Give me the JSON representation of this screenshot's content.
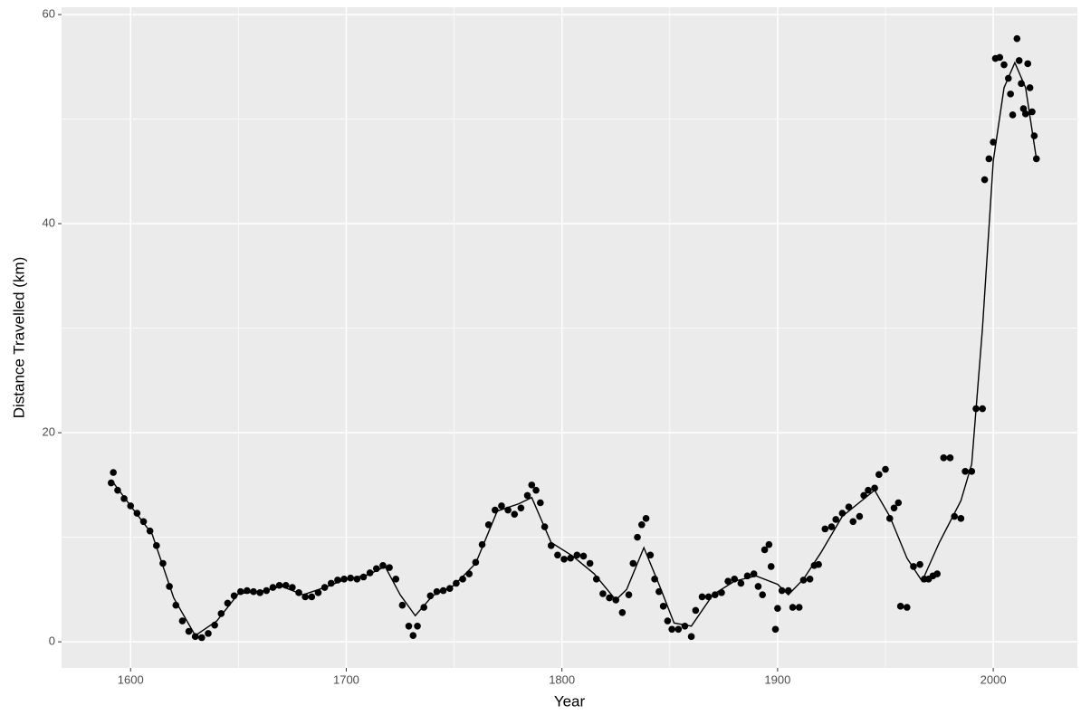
{
  "chart_data": {
    "type": "scatter",
    "x_label": "Year",
    "y_label": "Distance Travelled (km)",
    "xlim": [
      1568,
      2039
    ],
    "ylim": [
      -2.5,
      60.7
    ],
    "xticks": [
      1600,
      1700,
      1800,
      1900,
      2000
    ],
    "yticks": [
      0,
      20,
      40,
      60
    ],
    "x_minor_breaks": [
      1650,
      1750,
      1850,
      1950
    ],
    "y_minor_breaks": [
      10,
      30,
      50
    ],
    "grid": true,
    "point_color": "#000000",
    "line_color": "#000000",
    "x": [
      1591,
      1592,
      1594,
      1597,
      1600,
      1603,
      1606,
      1609,
      1612,
      1615,
      1618,
      1621,
      1624,
      1627,
      1630,
      1633,
      1636,
      1639,
      1642,
      1645,
      1648,
      1651,
      1654,
      1657,
      1660,
      1663,
      1666,
      1669,
      1672,
      1675,
      1678,
      1681,
      1684,
      1687,
      1690,
      1693,
      1696,
      1699,
      1702,
      1705,
      1708,
      1711,
      1714,
      1717,
      1720,
      1723,
      1726,
      1729,
      1731,
      1733,
      1736,
      1739,
      1742,
      1745,
      1748,
      1751,
      1754,
      1757,
      1760,
      1763,
      1766,
      1769,
      1772,
      1775,
      1778,
      1781,
      1784,
      1786,
      1788,
      1790,
      1792,
      1795,
      1798,
      1801,
      1804,
      1807,
      1810,
      1813,
      1816,
      1819,
      1822,
      1825,
      1828,
      1831,
      1833,
      1835,
      1837,
      1839,
      1841,
      1843,
      1845,
      1847,
      1849,
      1851,
      1854,
      1857,
      1860,
      1862,
      1865,
      1868,
      1871,
      1874,
      1877,
      1880,
      1883,
      1886,
      1889,
      1891,
      1893,
      1894,
      1896,
      1897,
      1899,
      1900,
      1902,
      1905,
      1907,
      1910,
      1912,
      1915,
      1917,
      1919,
      1922,
      1925,
      1927,
      1930,
      1933,
      1935,
      1938,
      1940,
      1942,
      1945,
      1947,
      1950,
      1952,
      1954,
      1956,
      1957,
      1960,
      1963,
      1966,
      1968,
      1970,
      1972,
      1974,
      1977,
      1980,
      1982,
      1985,
      1987,
      1990,
      1992,
      1995,
      1996,
      1998,
      2000,
      2001,
      2003,
      2005,
      2007,
      2008,
      2009,
      2011,
      2012,
      2013,
      2014,
      2015,
      2016,
      2017,
      2018,
      2019,
      2020
    ],
    "values": [
      15.2,
      16.2,
      14.5,
      13.7,
      13.0,
      12.3,
      11.5,
      10.6,
      9.2,
      7.5,
      5.3,
      3.5,
      2.0,
      1.0,
      0.5,
      0.4,
      0.8,
      1.6,
      2.7,
      3.7,
      4.4,
      4.8,
      4.9,
      4.8,
      4.7,
      4.9,
      5.2,
      5.4,
      5.4,
      5.2,
      4.7,
      4.3,
      4.3,
      4.7,
      5.2,
      5.6,
      5.9,
      6.0,
      6.1,
      6.0,
      6.2,
      6.6,
      7.0,
      7.3,
      7.1,
      6.0,
      3.5,
      1.5,
      0.6,
      1.5,
      3.3,
      4.4,
      4.8,
      4.9,
      5.1,
      5.6,
      6.0,
      6.5,
      7.6,
      9.3,
      11.2,
      12.6,
      13.0,
      12.6,
      12.2,
      12.8,
      14.0,
      15.0,
      14.5,
      13.3,
      11.0,
      9.2,
      8.3,
      7.9,
      8.0,
      8.3,
      8.2,
      7.5,
      6.0,
      4.6,
      4.2,
      4.0,
      2.8,
      4.5,
      7.5,
      10.0,
      11.2,
      11.8,
      8.3,
      6.0,
      4.8,
      3.4,
      2.0,
      1.2,
      1.2,
      1.5,
      0.5,
      3.0,
      4.3,
      4.3,
      4.5,
      4.7,
      5.8,
      6.0,
      5.6,
      6.3,
      6.5,
      5.3,
      4.5,
      8.8,
      9.3,
      7.2,
      1.2,
      3.2,
      4.9,
      4.9,
      3.3,
      3.3,
      5.9,
      6.0,
      7.3,
      7.4,
      10.8,
      11.0,
      11.7,
      12.3,
      12.9,
      11.5,
      12.0,
      14.0,
      14.5,
      14.7,
      16.0,
      16.5,
      11.8,
      12.8,
      13.3,
      3.4,
      3.3,
      7.2,
      7.4,
      6.0,
      6.0,
      6.3,
      6.5,
      17.6,
      17.6,
      12.0,
      11.8,
      16.3,
      16.3,
      22.3,
      22.3,
      44.2,
      46.2,
      47.8,
      55.8,
      55.9,
      55.2,
      53.9,
      52.4,
      50.4,
      57.7,
      55.6,
      53.4,
      51.0,
      50.5,
      55.3,
      53.0,
      50.7,
      48.4,
      46.2
    ],
    "smooth": {
      "x": [
        1591,
        1600,
        1610,
        1620,
        1630,
        1640,
        1650,
        1660,
        1670,
        1680,
        1690,
        1700,
        1710,
        1718,
        1725,
        1732,
        1740,
        1750,
        1760,
        1770,
        1780,
        1786,
        1795,
        1805,
        1815,
        1825,
        1830,
        1838,
        1845,
        1852,
        1860,
        1870,
        1880,
        1890,
        1900,
        1905,
        1912,
        1920,
        1930,
        1945,
        1952,
        1960,
        1967,
        1975,
        1985,
        1990,
        1995,
        2000,
        2005,
        2010,
        2015,
        2020
      ],
      "values": [
        15.5,
        13.0,
        10.3,
        4.2,
        0.6,
        2.0,
        4.6,
        4.8,
        5.3,
        4.5,
        5.2,
        6.0,
        6.4,
        7.2,
        4.5,
        2.5,
        4.4,
        5.4,
        7.5,
        12.5,
        13.2,
        13.8,
        9.5,
        8.2,
        6.5,
        4.0,
        5.0,
        9.0,
        5.5,
        1.8,
        1.5,
        4.5,
        5.8,
        6.3,
        5.5,
        4.5,
        6.0,
        8.5,
        12.0,
        14.5,
        12.0,
        8.0,
        5.8,
        9.5,
        13.5,
        17,
        30,
        46,
        53,
        55.4,
        53,
        46.2
      ]
    }
  }
}
